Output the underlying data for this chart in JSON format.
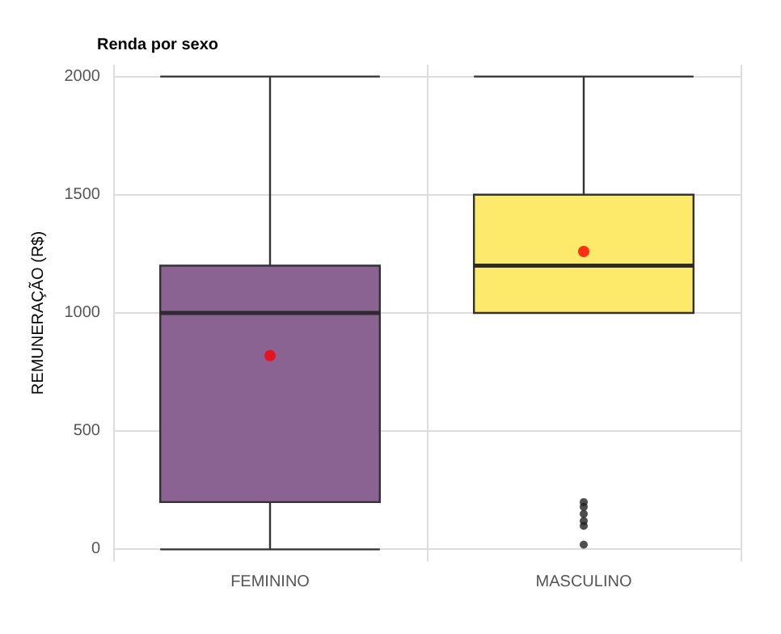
{
  "chart_data": {
    "type": "box",
    "title": "Renda por sexo",
    "ylabel": "REMUNERAÇÃO (R$)",
    "categories": [
      "FEMININO",
      "MASCULINO"
    ],
    "colors": [
      "#8b6393",
      "#fde96a"
    ],
    "boxes": [
      {
        "low": 0,
        "q1": 200,
        "median": 1000,
        "q3": 1200,
        "high": 2000,
        "mean": 820
      },
      {
        "low": 1000,
        "q1": 1000,
        "median": 1200,
        "q3": 1500,
        "high": 2000,
        "mean": 1260,
        "outliers": [
          200,
          180,
          150,
          120,
          100,
          20
        ]
      }
    ],
    "ylim": [
      -50,
      2050
    ],
    "yticks": [
      0,
      500,
      1000,
      1500,
      2000
    ],
    "grid": true
  }
}
